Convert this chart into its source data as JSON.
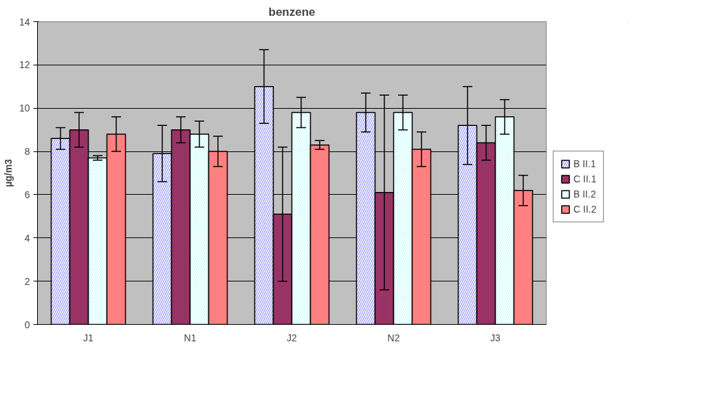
{
  "chart_data": {
    "type": "bar",
    "title": "benzene",
    "ylabel": "µg/m3",
    "categories": [
      "J1",
      "N1",
      "J2",
      "N2",
      "J3"
    ],
    "series": [
      {
        "name": "B II.1",
        "color": "#9999ff",
        "values": [
          8.6,
          7.9,
          11.0,
          9.8,
          9.2
        ],
        "errors": [
          0.5,
          1.3,
          1.7,
          0.9,
          1.8
        ]
      },
      {
        "name": "C II.1",
        "color": "#993366",
        "values": [
          9.0,
          9.0,
          5.1,
          6.1,
          8.4
        ],
        "errors": [
          0.8,
          0.6,
          3.1,
          4.5,
          0.8
        ]
      },
      {
        "name": "B II.2",
        "color": "#ccffff",
        "values": [
          7.7,
          8.8,
          9.8,
          9.8,
          9.6
        ],
        "errors": [
          0.1,
          0.6,
          0.7,
          0.8,
          0.8
        ]
      },
      {
        "name": "C II.2",
        "color": "#ff8080",
        "values": [
          8.8,
          8.0,
          8.3,
          8.1,
          6.2
        ],
        "errors": [
          0.8,
          0.7,
          0.2,
          0.8,
          0.7
        ]
      }
    ],
    "ylim": [
      0,
      14
    ],
    "yticks": [
      0,
      2,
      4,
      6,
      8,
      10,
      12,
      14
    ],
    "grid": "y",
    "legend": "right"
  }
}
